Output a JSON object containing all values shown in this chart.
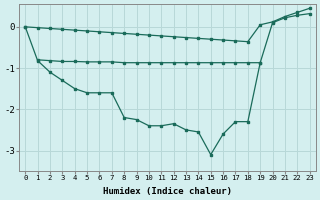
{
  "xlabel": "Humidex (Indice chaleur)",
  "background_color": "#d4efef",
  "grid_color": "#b8d8d8",
  "line_color": "#1a6b5a",
  "xlim": [
    -0.5,
    23.5
  ],
  "ylim": [
    -3.5,
    0.55
  ],
  "yticks": [
    0,
    -1,
    -2,
    -3
  ],
  "xticks": [
    0,
    1,
    2,
    3,
    4,
    5,
    6,
    7,
    8,
    9,
    10,
    11,
    12,
    13,
    14,
    15,
    16,
    17,
    18,
    19,
    20,
    21,
    22,
    23
  ],
  "lineA_x": [
    0,
    1,
    2,
    3,
    4,
    5,
    6,
    7,
    8,
    9,
    10,
    11,
    12,
    13,
    14,
    15,
    16,
    17,
    18,
    19,
    20,
    21,
    22,
    23
  ],
  "lineA_y": [
    0.0,
    -0.02,
    -0.04,
    -0.06,
    -0.08,
    -0.1,
    -0.12,
    -0.14,
    -0.16,
    -0.18,
    -0.2,
    -0.22,
    -0.24,
    -0.26,
    -0.28,
    -0.3,
    -0.32,
    -0.34,
    -0.36,
    0.05,
    0.12,
    0.25,
    0.35,
    0.45
  ],
  "lineB_x": [
    1,
    2,
    3,
    4,
    5,
    6,
    7,
    8,
    9,
    10,
    11,
    12,
    13,
    14,
    15,
    16,
    17,
    18,
    19,
    20,
    21,
    22,
    23
  ],
  "lineB_y": [
    -0.8,
    -0.82,
    -0.84,
    -0.84,
    -0.85,
    -0.85,
    -0.85,
    -0.87,
    -0.87,
    -0.87,
    -0.87,
    -0.87,
    -0.87,
    -0.87,
    -0.87,
    -0.87,
    -0.87,
    -0.87,
    -0.87,
    0.1,
    0.22,
    0.28,
    0.32
  ],
  "lineC_x": [
    0,
    1,
    2,
    3,
    4,
    5,
    6,
    7,
    8,
    9,
    10,
    11,
    12,
    13,
    14,
    15,
    16,
    17,
    18,
    19
  ],
  "lineC_y": [
    0.0,
    -0.82,
    -1.1,
    -1.3,
    -1.5,
    -1.6,
    -1.6,
    -1.6,
    -2.2,
    -2.25,
    -2.4,
    -2.4,
    -2.35,
    -2.5,
    -2.55,
    -3.1,
    -2.6,
    -2.3,
    -2.3,
    -0.87
  ]
}
